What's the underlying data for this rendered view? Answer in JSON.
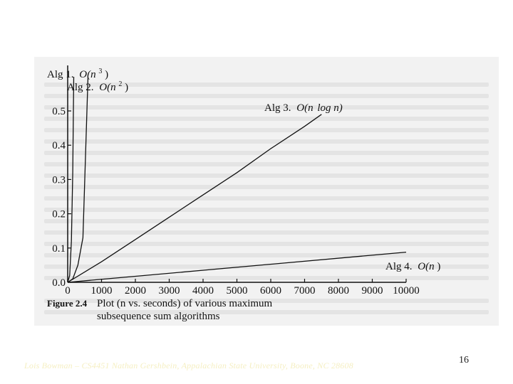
{
  "chart_data": {
    "type": "line",
    "title": "",
    "xlabel": "",
    "ylabel": "",
    "xlim": [
      0,
      10000
    ],
    "ylim": [
      0,
      0.5
    ],
    "x_ticks": [
      "0",
      "1000",
      "2000",
      "3000",
      "4000",
      "5000",
      "6000",
      "7000",
      "8000",
      "9000",
      "10000"
    ],
    "y_ticks": [
      "0.0",
      "0.1",
      "0.2",
      "0.3",
      "0.4",
      "0.5"
    ],
    "series": [
      {
        "name": "Alg 1. O(n^3)",
        "label_text": "Alg 1.",
        "label_big_o": "O(n",
        "label_exp": "3",
        "label_close": ")",
        "x": [
          0,
          60,
          110,
          150,
          180
        ],
        "y": [
          0,
          0.02,
          0.12,
          0.32,
          0.6
        ]
      },
      {
        "name": "Alg 2. O(n^2)",
        "label_text": "Alg 2.",
        "label_big_o": "O(n",
        "label_exp": "2",
        "label_close": ")",
        "x": [
          0,
          150,
          300,
          450,
          600
        ],
        "y": [
          0,
          0.01,
          0.05,
          0.13,
          0.6
        ]
      },
      {
        "name": "Alg 3. O(n log n)",
        "label_text": "Alg 3.",
        "label_big_o": "O(n",
        "label_exp": "",
        "label_close": "log n)",
        "x": [
          0,
          1000,
          2000,
          3000,
          4000,
          5000,
          6000,
          7000,
          7500
        ],
        "y": [
          0,
          0.06,
          0.125,
          0.19,
          0.255,
          0.32,
          0.39,
          0.455,
          0.49
        ]
      },
      {
        "name": "Alg 4. O(n)",
        "label_text": "Alg 4.",
        "label_big_o": "O(n",
        "label_exp": "",
        "label_close": ")",
        "x": [
          0,
          10000
        ],
        "y": [
          0,
          0.088
        ]
      }
    ],
    "caption_figure": "Figure 2.4",
    "caption_line1": "Plot (n vs. seconds) of various maximum",
    "caption_line2": "subsequence sum algorithms"
  },
  "footer": {
    "text": "Lois Bowman – CS4451 Nathan Gershbein, Appalachian State University, Boone, NC 28608",
    "page_number": "16"
  }
}
